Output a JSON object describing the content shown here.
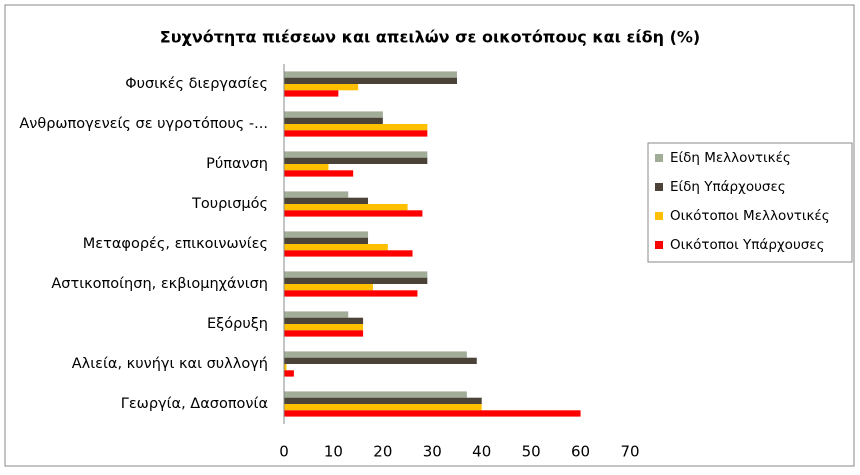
{
  "chart_data": {
    "type": "bar",
    "orientation": "horizontal",
    "title": "Συχνότητα πιέσεων και απειλών σε οικοτόπους και είδη (%)",
    "categories": [
      "Φυσικές διεργασίες",
      "Ανθρωπογενείς σε υγροτόπους -...",
      "Ρύπανση",
      "Τουρισμός",
      "Μεταφορές, επικοινωνίες",
      "Αστικοποίηση, εκβιομηχάνιση",
      "Εξόρυξη",
      "Αλιεία, κυνήγι και συλλογή",
      "Γεωργία, Δασοπονία"
    ],
    "series": [
      {
        "name": "Είδη Μελλοντικές",
        "color": "#a2ad98",
        "values": [
          35,
          20,
          29,
          13,
          17,
          29,
          13,
          37,
          37
        ]
      },
      {
        "name": "Είδη Υπάρχουσες",
        "color": "#4b4338",
        "values": [
          35,
          20,
          29,
          17,
          17,
          29,
          16,
          39,
          40
        ]
      },
      {
        "name": "Οικότοποι Μελλοντικές",
        "color": "#ffc000",
        "values": [
          15,
          29,
          9,
          25,
          21,
          18,
          16,
          0.5,
          40
        ]
      },
      {
        "name": "Οικότοποι Υπάρχουσες",
        "color": "#ff0000",
        "values": [
          11,
          29,
          14,
          28,
          26,
          27,
          16,
          2,
          60
        ]
      }
    ],
    "xlim": [
      0,
      70
    ],
    "xticks": [
      0,
      10,
      20,
      30,
      40,
      50,
      60,
      70
    ],
    "grid": false,
    "legend": "right"
  }
}
